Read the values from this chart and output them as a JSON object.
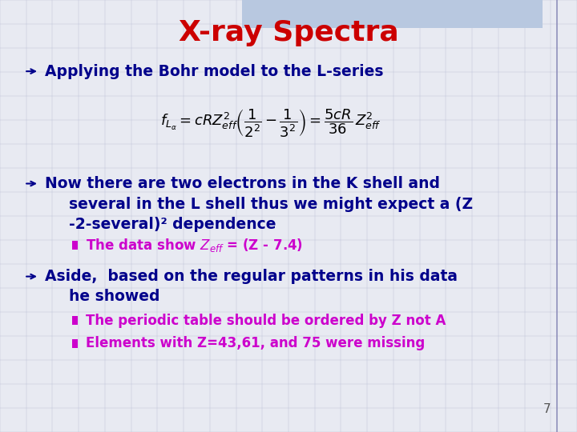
{
  "title": "X-ray Spectra",
  "title_color": "#CC0000",
  "title_fontsize": 26,
  "background_color": "#e8eaf2",
  "bullet_color": "#00008B",
  "sub_bullet_color": "#CC00CC",
  "bullet_fontsize": 13.5,
  "sub_bullet_fontsize": 12,
  "formula_fontsize": 13,
  "bullet1": "Applying the Bohr model to the L-series",
  "bullet2_line1": "Now there are two electrons in the K shell and",
  "bullet2_line2": "several in the L shell thus we might expect a (Z",
  "bullet2_line3": "-2-several)² dependence",
  "sub_bullet2": "The data show $Z_{eff}$ = (Z - 7.4)",
  "bullet3_line1": "Aside,  based on the regular patterns in his data",
  "bullet3_line2": "he showed",
  "sub_bullet3a": "The periodic table should be ordered by Z not A",
  "sub_bullet3b": "Elements with Z=43,61, and 75 were missing",
  "page_number": "7",
  "grid_color": "#c0c4d8",
  "top_bar_color": "#b8c8e0",
  "right_bar_color": "#c0c8d8"
}
